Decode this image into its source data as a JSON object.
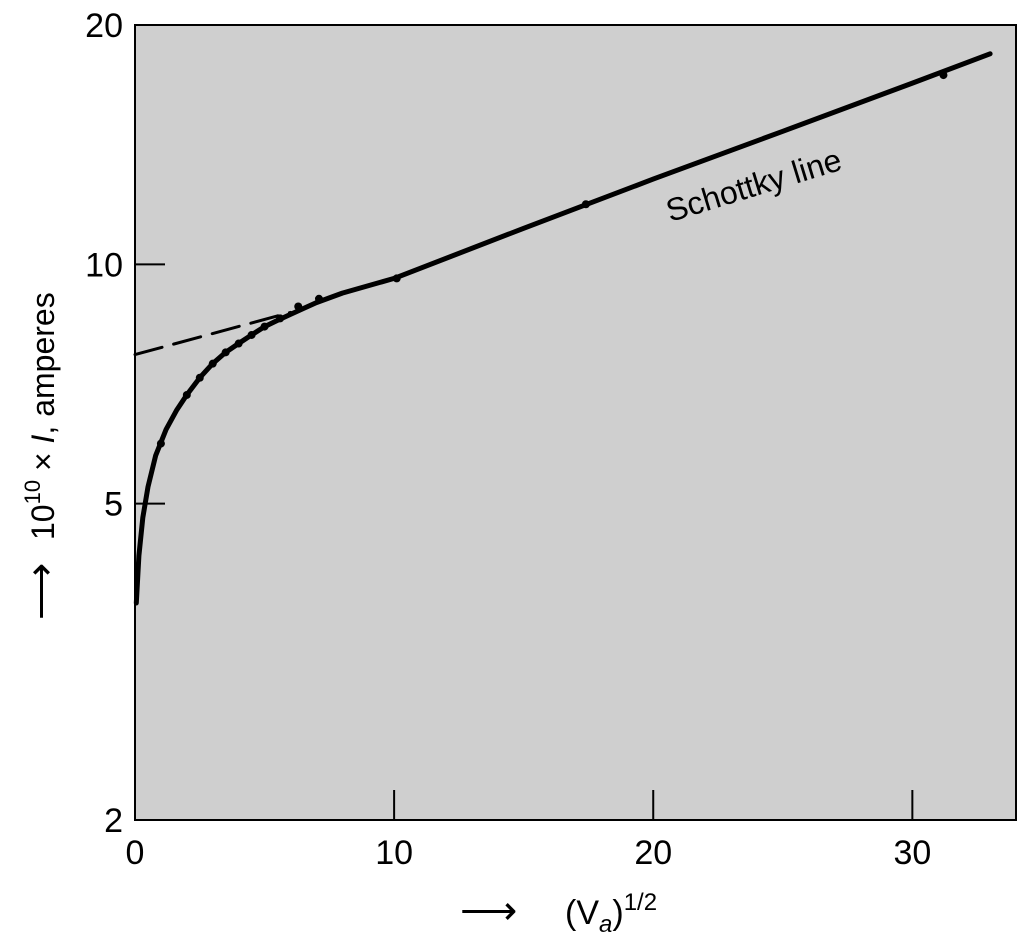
{
  "chart_data": {
    "type": "line",
    "title": "",
    "xlabel": {
      "base": "(V",
      "sub": "a",
      "close": ")",
      "sup": "1/2"
    },
    "ylabel": {
      "pre": "10",
      "sup": "10",
      "post": " × ",
      "var": "I",
      "unit": ", amperes"
    },
    "axis_arrow": "⟶",
    "x_scale": "linear",
    "y_scale": "log",
    "xlim": [
      0,
      34
    ],
    "ylim": [
      2,
      20
    ],
    "x_ticks": [
      0,
      10,
      20,
      30
    ],
    "x_tick_labels": [
      "0",
      "10",
      "20",
      "30"
    ],
    "y_ticks": [
      2,
      5,
      10,
      20
    ],
    "y_tick_labels": [
      "2",
      "5",
      "10",
      "20"
    ],
    "grid": false,
    "background_color": "#cfcfcf",
    "line_color": "#000000",
    "series": [
      {
        "name": "",
        "style": "solid",
        "x": [
          0.05,
          0.15,
          0.3,
          0.5,
          0.8,
          1.2,
          1.6,
          2.0,
          2.5,
          3.0,
          3.5,
          4.0,
          4.5,
          5.0,
          5.5,
          6.0,
          6.5,
          7.0,
          8.0,
          10.0,
          15.0,
          20.0,
          25.0,
          30.0,
          33.0
        ],
        "y": [
          3.75,
          4.3,
          4.8,
          5.25,
          5.75,
          6.2,
          6.55,
          6.85,
          7.2,
          7.5,
          7.75,
          7.95,
          8.15,
          8.35,
          8.5,
          8.65,
          8.8,
          8.95,
          9.2,
          9.6,
          11.1,
          12.8,
          14.7,
          16.9,
          18.4
        ]
      },
      {
        "name": "",
        "style": "dashed",
        "x": [
          0.0,
          6.0
        ],
        "y": [
          7.7,
          8.7
        ]
      },
      {
        "name": "",
        "style": "points",
        "x": [
          1.0,
          2.0,
          2.5,
          3.0,
          3.5,
          4.0,
          4.5,
          5.0,
          5.6,
          6.3,
          7.1,
          10.1,
          17.4,
          31.2
        ],
        "y": [
          5.95,
          6.85,
          7.2,
          7.5,
          7.75,
          7.95,
          8.15,
          8.35,
          8.55,
          8.85,
          9.05,
          9.6,
          11.9,
          17.3
        ]
      }
    ],
    "annotations": [
      {
        "text": "Schottky line",
        "x": 24.0,
        "y": 12.2
      }
    ]
  }
}
